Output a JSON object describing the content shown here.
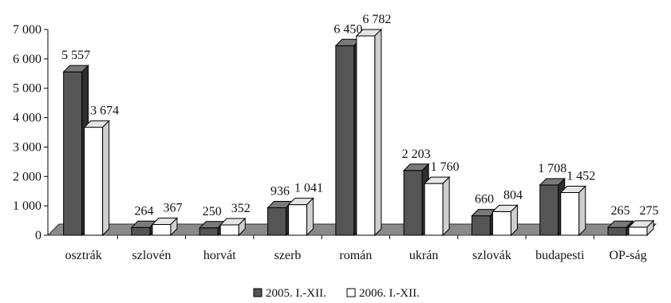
{
  "chart_data": {
    "type": "bar",
    "categories": [
      "osztrák",
      "szlovén",
      "horvát",
      "szerb",
      "román",
      "ukrán",
      "szlovák",
      "budapesti",
      "OP-ság"
    ],
    "series": [
      {
        "name": "2005. I.-XII.",
        "values": [
          5557,
          264,
          250,
          936,
          6450,
          2203,
          660,
          1708,
          265
        ],
        "labels": [
          "5 557",
          "264",
          "250",
          "936",
          "6 450",
          "2 203",
          "660",
          "1 708",
          "265"
        ],
        "color": "#555555"
      },
      {
        "name": "2006. I.-XII.",
        "values": [
          3674,
          367,
          352,
          1041,
          6782,
          1760,
          804,
          1452,
          275
        ],
        "labels": [
          "3 674",
          "367",
          "352",
          "1 041",
          "6 782",
          "1 760",
          "804",
          "1 452",
          "275"
        ],
        "color": "#ffffff"
      }
    ],
    "yticks": [
      "0",
      "1 000",
      "2 000",
      "3 000",
      "4 000",
      "5 000",
      "6 000",
      "7 000"
    ],
    "ylim": [
      0,
      7000
    ],
    "legend_position": "bottom",
    "grid": false,
    "style": "3d-clustered-column"
  }
}
